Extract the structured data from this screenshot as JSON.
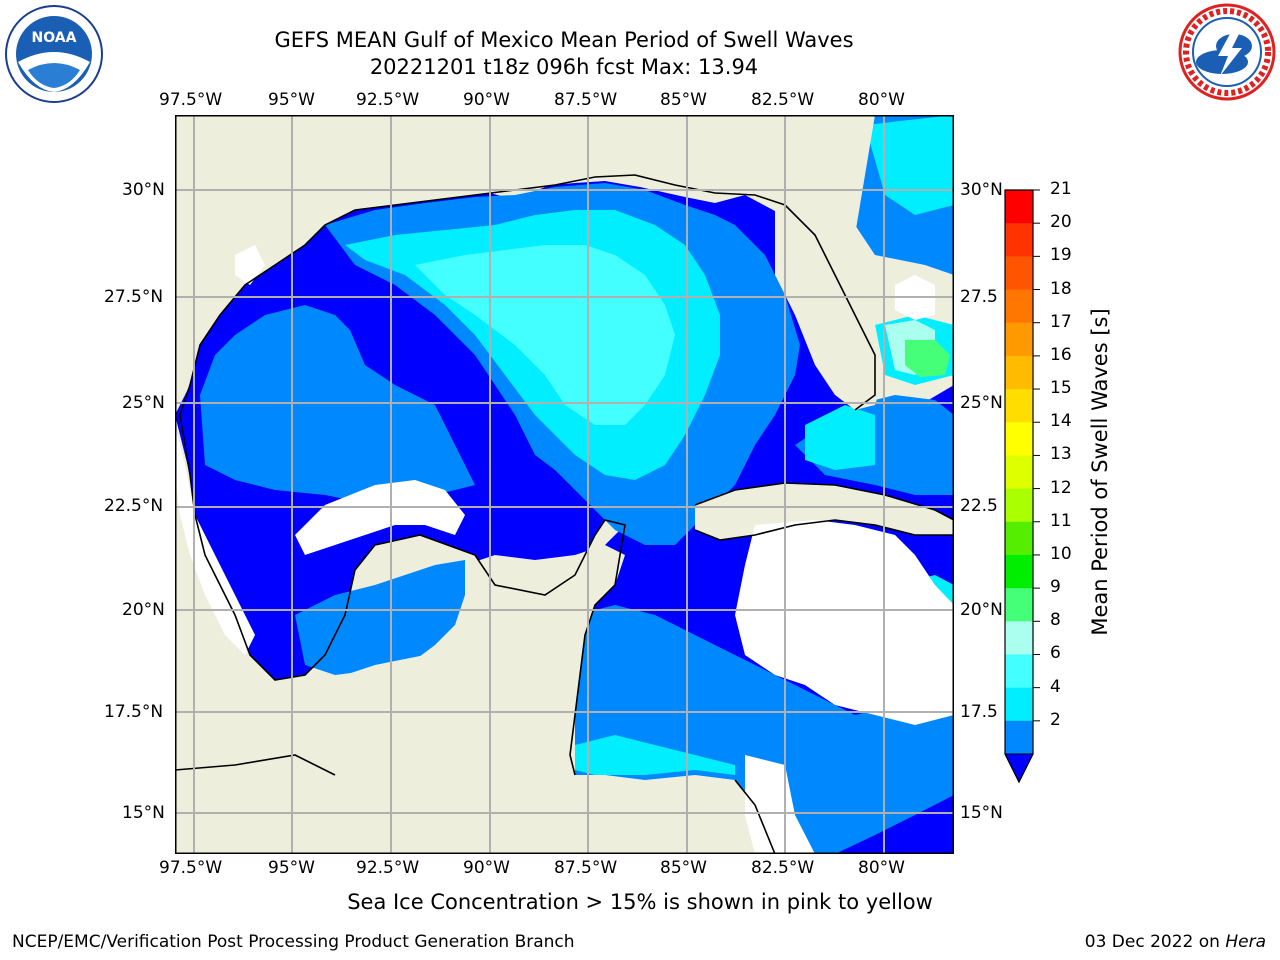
{
  "header": {
    "title_line1": "GEFS MEAN Gulf of Mexico Mean Period of Swell Waves",
    "title_line2": "20221201 t18z 096h fcst   Max: 13.94"
  },
  "logos": {
    "left": {
      "name": "noaa-logo",
      "text": "NOAA"
    },
    "right": {
      "name": "nws-logo",
      "text": "NATIONAL WEATHER SERVICE"
    }
  },
  "map": {
    "lon_ticks": [
      "97.5°W",
      "95°W",
      "92.5°W",
      "90°W",
      "87.5°W",
      "85°W",
      "82.5°W",
      "80°W"
    ],
    "lat_ticks": [
      "30°N",
      "27.5°N",
      "25°N",
      "22.5°N",
      "20°N",
      "17.5°N",
      "15°N"
    ],
    "right_lat_ticks": [
      "30°N",
      "27.5",
      "25°N",
      "22.5",
      "20°N",
      "17.5",
      "15°N"
    ],
    "colors": {
      "land": "#eeeedc",
      "grid": "#b0b0b0"
    }
  },
  "colorbar": {
    "label": "Mean Period of Swell Waves [s]",
    "ticks": [
      "21",
      "20",
      "19",
      "18",
      "17",
      "16",
      "15",
      "14",
      "13",
      "12",
      "11",
      "10",
      "9",
      "8",
      "6",
      "4",
      "2"
    ],
    "colors": [
      "#ff0000",
      "#ff3300",
      "#ff5500",
      "#ff7700",
      "#ff9900",
      "#ffbb00",
      "#ffdd00",
      "#ffff00",
      "#ddff00",
      "#aaff00",
      "#55ee00",
      "#00ee00",
      "#44ff77",
      "#aaffee",
      "#44ffff",
      "#00eeff",
      "#0088ff"
    ],
    "extend_color": "#0000ff"
  },
  "footer": {
    "note": "Sea Ice Concentration > 15% is shown in pink to yellow",
    "credit": "NCEP/EMC/Verification Post Processing Product Generation Branch",
    "date": "03 Dec 2022 on",
    "machine": "Hera"
  }
}
